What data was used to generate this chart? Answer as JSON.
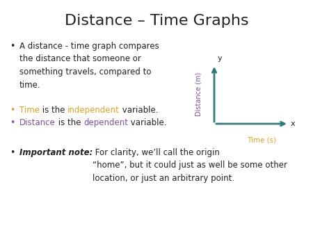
{
  "title": "Distance – Time Graphs",
  "title_fontsize": 16,
  "background_color": "#ffffff",
  "bullet1": "A distance - time graph compares\nthe distance that someone or\nsomething travels, compared to\ntime.",
  "bullet2_orange": "Time",
  "bullet2_black1": " is the ",
  "bullet2_orange2": "independent",
  "bullet2_black2": " variable.",
  "bullet3_purple": "Distance",
  "bullet3_black1": " is the ",
  "bullet3_purple2": "dependent",
  "bullet3_black2": " variable.",
  "bullet4_bold": "Important note:",
  "bullet4_rest": " For clarity, we’ll call the origin\n“home”, but it could just as well be some other\nlocation, or just an arbitrary point.",
  "orange_color": "#E8A020",
  "purple_color": "#7B52AB",
  "teal_color": "#2E7D7D",
  "black_color": "#222222",
  "text_fontsize": 8.5,
  "axis_label_time": "Time (s)",
  "axis_label_dist": "Distance (m)",
  "axis_x_label": "x",
  "axis_y_label": "y"
}
